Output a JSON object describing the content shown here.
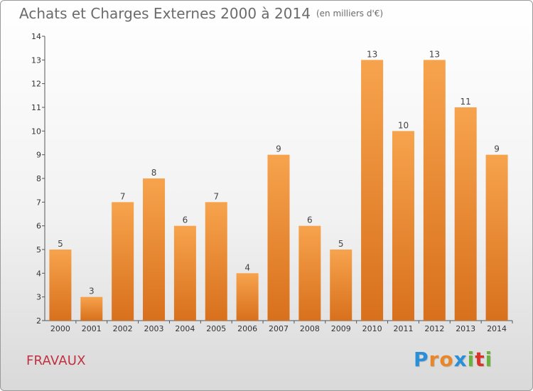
{
  "header": {
    "title": "Achats et Charges Externes 2000 à 2014",
    "unit_note": "(en milliers d'€)"
  },
  "footer": {
    "commune": "FRAVAUX",
    "logo_text": "Proxiti",
    "logo_letters": [
      {
        "ch": "P",
        "color": "#2a8fd6"
      },
      {
        "ch": "r",
        "color": "#e8862a"
      },
      {
        "ch": "o",
        "color": "#e8862a"
      },
      {
        "ch": "x",
        "color": "#2a8fd6"
      },
      {
        "ch": "i",
        "color": "#6ab23e"
      },
      {
        "ch": "t",
        "color": "#d9342b"
      },
      {
        "ch": "i",
        "color": "#6ab23e"
      }
    ]
  },
  "chart_data": {
    "type": "bar",
    "title": "Achats et Charges Externes 2000 à 2014",
    "subtitle": "(en milliers d'€)",
    "categories": [
      "2000",
      "2001",
      "2002",
      "2003",
      "2004",
      "2005",
      "2006",
      "2007",
      "2008",
      "2009",
      "2010",
      "2011",
      "2012",
      "2013",
      "2014"
    ],
    "values": [
      5,
      3,
      7,
      8,
      6,
      7,
      4,
      9,
      6,
      5,
      13,
      10,
      13,
      11,
      9
    ],
    "ylim": [
      2,
      14
    ],
    "yticks": [
      2,
      3,
      4,
      5,
      6,
      7,
      8,
      9,
      10,
      11,
      12,
      13,
      14
    ],
    "grid": false,
    "bar_color_top": "#f7a34d",
    "bar_color_bottom": "#d8701c"
  }
}
